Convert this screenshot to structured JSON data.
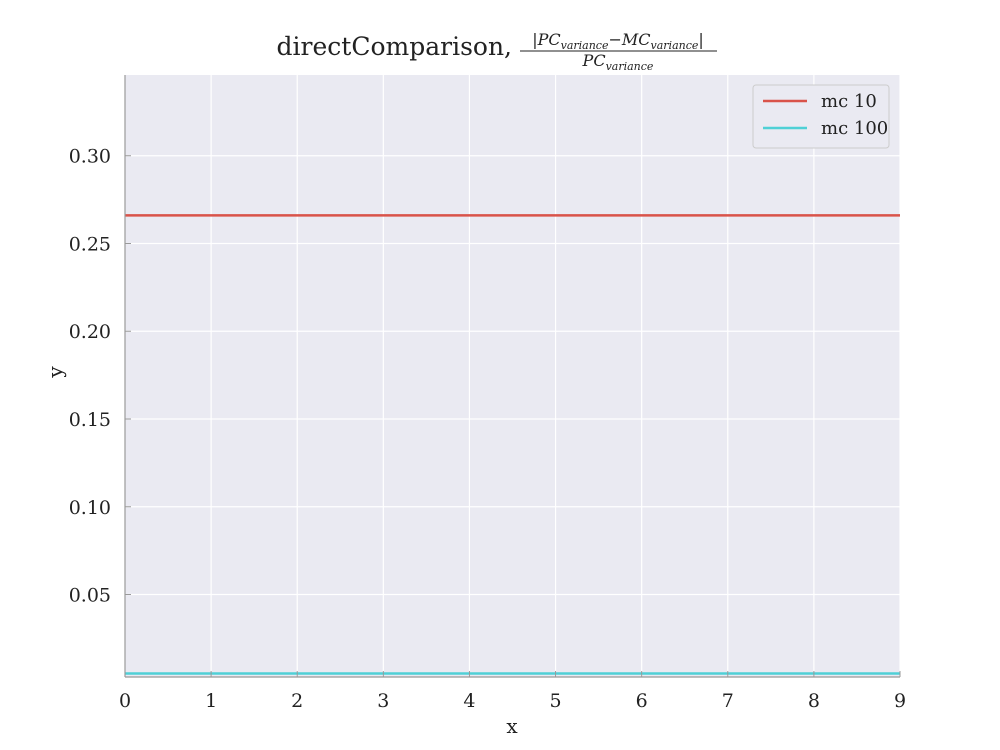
{
  "chart_data": {
    "type": "line",
    "title": {
      "prefix": "directComparison,",
      "numerator": {
        "open": "|",
        "pc": "PC",
        "pc_sub": "variance",
        "minus": "−",
        "mc": "MC",
        "mc_sub": "variance",
        "close": "|"
      },
      "denominator": {
        "pc": "PC",
        "pc_sub": "variance"
      }
    },
    "xlabel": "x",
    "ylabel": "y",
    "xlim": [
      0,
      9
    ],
    "ylim": [
      0.003,
      0.346
    ],
    "xticks": [
      "0",
      "1",
      "2",
      "3",
      "4",
      "5",
      "6",
      "7",
      "8",
      "9"
    ],
    "yticks": [
      "0.05",
      "0.10",
      "0.15",
      "0.20",
      "0.25",
      "0.30"
    ],
    "x": [
      0,
      1,
      2,
      3,
      4,
      5,
      6,
      7,
      8,
      9
    ],
    "series": [
      {
        "name": "mc 10",
        "color": "#d9534a",
        "values": [
          0.266,
          0.266,
          0.266,
          0.266,
          0.266,
          0.266,
          0.266,
          0.266,
          0.266,
          0.266
        ]
      },
      {
        "name": "mc 100",
        "color": "#4fd0d6",
        "values": [
          0.005,
          0.005,
          0.005,
          0.005,
          0.005,
          0.005,
          0.005,
          0.005,
          0.005,
          0.005
        ]
      }
    ],
    "grid": true,
    "legend_position": "top-right",
    "colors": {
      "plot_background": "#eaeaf2",
      "grid": "#ffffff",
      "axis": "#999999"
    }
  }
}
